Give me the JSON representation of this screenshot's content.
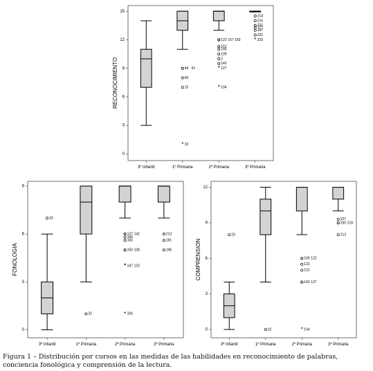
{
  "chart_data": [
    {
      "type": "box",
      "ylabel": "RECONOCIMIENTO",
      "ylim": [
        -0.7,
        15.6
      ],
      "yticks": [
        0,
        3,
        6,
        9,
        12,
        15
      ],
      "box_color": "#d3d3d3",
      "categories": [
        "3º Infantil",
        "1º Primaria",
        "2º Primaria",
        "3º Primaria"
      ],
      "boxes": [
        {
          "min": 3,
          "q1": 7,
          "median": 10,
          "q3": 11,
          "max": 14,
          "outliers": []
        },
        {
          "min": 11,
          "q1": 13,
          "median": 14,
          "q3": 15,
          "max": 15,
          "outliers": [
            {
              "value": 9,
              "label": "44",
              "extreme": false
            },
            {
              "value": 9,
              "label": "61",
              "extreme": false
            },
            {
              "value": 8,
              "label": "60",
              "extreme": false
            },
            {
              "value": 7,
              "label": "15",
              "extreme": false
            },
            {
              "value": 1,
              "label": "32",
              "extreme": true
            }
          ]
        },
        {
          "min": 13,
          "q1": 14,
          "median": 15,
          "q3": 15,
          "max": 15,
          "outliers": [
            {
              "value": 12,
              "label": "122",
              "extreme": false
            },
            {
              "value": 12,
              "label": "167",
              "extreme": false
            },
            {
              "value": 12,
              "label": "183",
              "extreme": false
            },
            {
              "value": 11.3,
              "label": "161",
              "extreme": false
            },
            {
              "value": 11,
              "label": "146",
              "extreme": false
            },
            {
              "value": 10.5,
              "label": "109",
              "extreme": false
            },
            {
              "value": 10,
              "label": "2",
              "extreme": false
            },
            {
              "value": 9.5,
              "label": "142",
              "extreme": false
            },
            {
              "value": 9,
              "label": "127",
              "extreme": true
            },
            {
              "value": 7,
              "label": "104",
              "extreme": true
            }
          ]
        },
        {
          "min": 15,
          "q1": 15,
          "median": 15,
          "q3": 15,
          "max": 15,
          "outliers": [
            {
              "value": 14.5,
              "label": "214",
              "extreme": false
            },
            {
              "value": 14,
              "label": "215",
              "extreme": false
            },
            {
              "value": 13.5,
              "label": "221",
              "extreme": false
            },
            {
              "value": 13.3,
              "label": "177",
              "extreme": false
            },
            {
              "value": 13,
              "label": "187",
              "extreme": false
            },
            {
              "value": 12.5,
              "label": "222",
              "extreme": false
            },
            {
              "value": 12,
              "label": "233",
              "extreme": true
            }
          ]
        }
      ]
    },
    {
      "type": "box",
      "ylabel": "FONOLOGIA",
      "ylim": [
        -0.5,
        9.3
      ],
      "yticks": [
        0,
        3,
        6,
        9
      ],
      "box_color": "#d3d3d3",
      "categories": [
        "3º Infantil",
        "1º Primaria",
        "2º Primaria",
        "3º Primaria"
      ],
      "boxes": [
        {
          "min": 0,
          "q1": 1,
          "median": 2,
          "q3": 3,
          "max": 6,
          "outliers": [
            {
              "value": 7,
              "label": "33",
              "extreme": false
            }
          ]
        },
        {
          "min": 3,
          "q1": 6,
          "median": 8,
          "q3": 9,
          "max": 9,
          "outliers": [
            {
              "value": 1,
              "label": "32",
              "extreme": false
            }
          ]
        },
        {
          "min": 7,
          "q1": 8,
          "median": 9,
          "q3": 9,
          "max": 9,
          "outliers": [
            {
              "value": 6,
              "label": "137",
              "extreme": false
            },
            {
              "value": 6,
              "label": "142",
              "extreme": false
            },
            {
              "value": 5.8,
              "label": "164",
              "extreme": false
            },
            {
              "value": 5.6,
              "label": "183",
              "extreme": false
            },
            {
              "value": 5,
              "label": "150",
              "extreme": false
            },
            {
              "value": 5,
              "label": "108",
              "extreme": false
            },
            {
              "value": 4,
              "label": "147",
              "extreme": true
            },
            {
              "value": 4,
              "label": "122",
              "extreme": true
            },
            {
              "value": 1,
              "label": "106",
              "extreme": true
            }
          ]
        },
        {
          "min": 7,
          "q1": 8,
          "median": 9,
          "q3": 9,
          "max": 9,
          "outliers": [
            {
              "value": 6,
              "label": "213",
              "extreme": false
            },
            {
              "value": 5.6,
              "label": "181",
              "extreme": false
            },
            {
              "value": 5,
              "label": "196",
              "extreme": false
            }
          ]
        }
      ]
    },
    {
      "type": "box",
      "ylabel": "COMPRENSION",
      "ylim": [
        -0.7,
        12.5
      ],
      "yticks": [
        0,
        3,
        6,
        9,
        12
      ],
      "box_color": "#d3d3d3",
      "categories": [
        "3º Infantil",
        "1º Primaria",
        "2º Primaria",
        "3º Primaria"
      ],
      "boxes": [
        {
          "min": 0,
          "q1": 1,
          "median": 2,
          "q3": 3,
          "max": 4,
          "outliers": [
            {
              "value": 8,
              "label": "23",
              "extreme": false
            }
          ]
        },
        {
          "min": 4,
          "q1": 8,
          "median": 10,
          "q3": 11,
          "max": 12,
          "outliers": [
            {
              "value": 0,
              "label": "32",
              "extreme": false
            }
          ]
        },
        {
          "min": 8,
          "q1": 10,
          "median": 12,
          "q3": 12,
          "max": 12,
          "outliers": [
            {
              "value": 6,
              "label": "169",
              "extreme": false
            },
            {
              "value": 6,
              "label": "122",
              "extreme": false
            },
            {
              "value": 5.5,
              "label": "123",
              "extreme": false
            },
            {
              "value": 5,
              "label": "131",
              "extreme": false
            },
            {
              "value": 4,
              "label": "143",
              "extreme": false
            },
            {
              "value": 4,
              "label": "127",
              "extreme": false
            },
            {
              "value": 0,
              "label": "104",
              "extreme": true
            }
          ]
        },
        {
          "min": 10,
          "q1": 11,
          "median": 12,
          "q3": 12,
          "max": 12,
          "outliers": [
            {
              "value": 9.3,
              "label": "227",
              "extreme": false
            },
            {
              "value": 9,
              "label": "230",
              "extreme": false
            },
            {
              "value": 9,
              "label": "218",
              "extreme": false
            },
            {
              "value": 8,
              "label": "213",
              "extreme": false
            }
          ]
        }
      ]
    }
  ],
  "caption": "Figura 1 – Distribución por cursos en las medidas de las habilidades en reconocimiento de palabras, conciencia fonológica y comprensión de la lectura."
}
